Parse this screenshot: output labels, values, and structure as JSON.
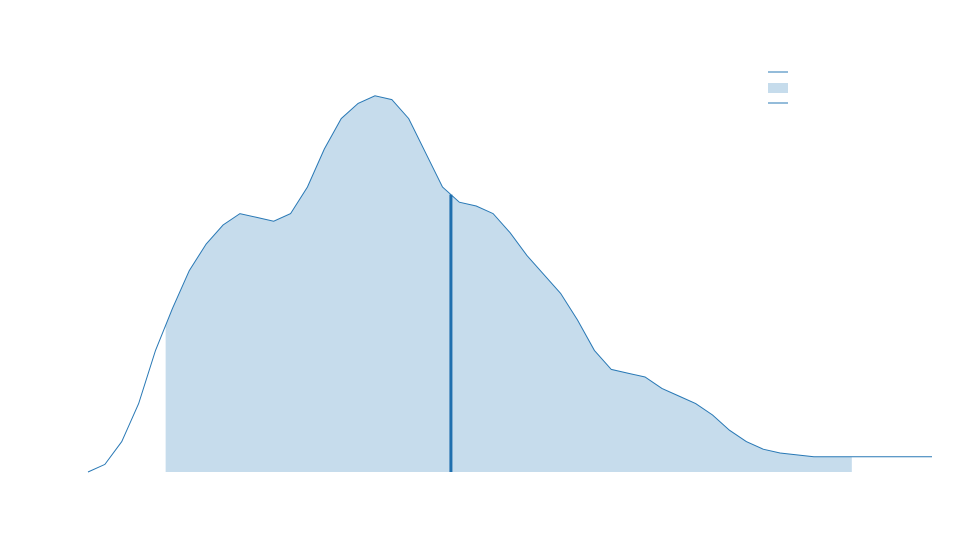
{
  "chart_data": {
    "type": "area",
    "title": "",
    "xlabel": "",
    "ylabel": "",
    "x_range": [
      0,
      100
    ],
    "y_range": [
      0,
      1
    ],
    "grid": false,
    "legend_position": "top-right",
    "legend_labels": [
      "",
      "",
      ""
    ],
    "colors": {
      "line": "#2878b5",
      "fill": "#c6dcec",
      "marker": "#1f6fae"
    },
    "density": {
      "x": [
        0,
        2,
        4,
        6,
        8,
        10,
        12,
        14,
        16,
        18,
        20,
        22,
        24,
        26,
        28,
        30,
        32,
        34,
        36,
        38,
        40,
        42,
        44,
        46,
        48,
        50,
        52,
        54,
        56,
        58,
        60,
        62,
        64,
        66,
        68,
        70,
        72,
        74,
        76,
        78,
        80,
        82,
        84,
        86,
        88,
        90,
        92,
        94,
        96,
        98,
        100
      ],
      "y": [
        0.0,
        0.02,
        0.08,
        0.18,
        0.32,
        0.43,
        0.53,
        0.6,
        0.65,
        0.68,
        0.67,
        0.66,
        0.68,
        0.75,
        0.85,
        0.93,
        0.97,
        0.99,
        0.98,
        0.93,
        0.84,
        0.75,
        0.71,
        0.7,
        0.68,
        0.63,
        0.57,
        0.52,
        0.47,
        0.4,
        0.32,
        0.27,
        0.26,
        0.25,
        0.22,
        0.2,
        0.18,
        0.15,
        0.11,
        0.08,
        0.06,
        0.05,
        0.045,
        0.04,
        0.04,
        0.04,
        0.04,
        0.04,
        0.04,
        0.04,
        0.04
      ]
    },
    "shaded_range": [
      9.2,
      90.5
    ],
    "marker_x": 43
  }
}
